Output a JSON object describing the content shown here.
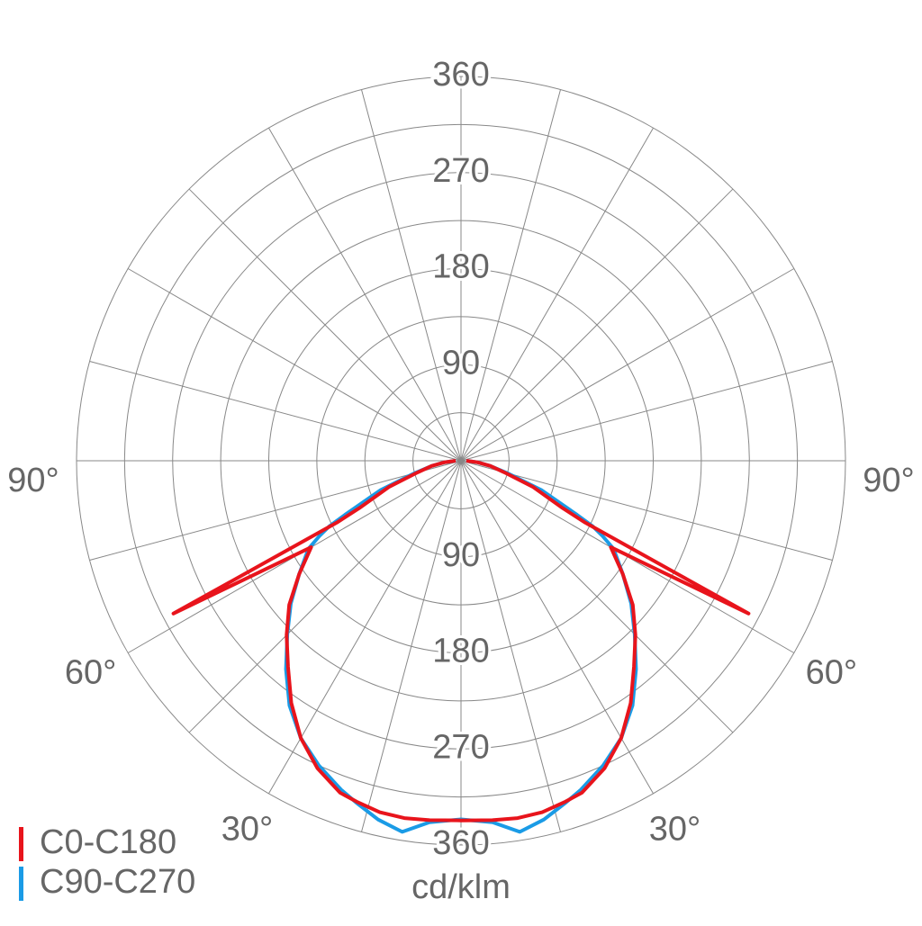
{
  "chart_data": {
    "type": "polar",
    "axis_label": "cd/klm",
    "x": [
      -90,
      -85,
      -80,
      -75,
      -70,
      -65,
      -63.5,
      -62,
      -60,
      -55,
      -50,
      -45,
      -40,
      -35,
      -30,
      -25,
      -20,
      -17,
      -13,
      -9,
      -5,
      0,
      5,
      9,
      13,
      17,
      20,
      25,
      30,
      35,
      40,
      45,
      50,
      55,
      60,
      62,
      63.5,
      65,
      70,
      75,
      80,
      85,
      90
    ],
    "series": [
      {
        "name": "C0-C180",
        "color": "#e8141c",
        "values": [
          5,
          15,
          28,
          42,
          72,
          105,
          130,
          305,
          162,
          185,
          210,
          231,
          252,
          277,
          300,
          318,
          331,
          334,
          338,
          339,
          338,
          337,
          338,
          339,
          338,
          334,
          331,
          318,
          300,
          277,
          252,
          231,
          210,
          185,
          162,
          305,
          130,
          105,
          72,
          42,
          28,
          15,
          5
        ]
      },
      {
        "name": "C90-C270",
        "color": "#1a9be6",
        "values": [
          5,
          15,
          28,
          45,
          80,
          120,
          138,
          150,
          165,
          185,
          208,
          230,
          255,
          280,
          300,
          315,
          328,
          335,
          345,
          352,
          340,
          336,
          340,
          352,
          345,
          335,
          328,
          315,
          300,
          280,
          255,
          230,
          208,
          185,
          165,
          150,
          138,
          120,
          80,
          45,
          28,
          15,
          5
        ]
      }
    ],
    "rlim": [
      0,
      360
    ],
    "rticks": [
      90,
      180,
      270,
      360
    ],
    "rgrid_step": 45,
    "angle_ticks": [
      {
        "value": 90,
        "label": "90°"
      },
      {
        "value": 60,
        "label": "60°"
      },
      {
        "value": 30,
        "label": "30°"
      }
    ],
    "angle_grid_step": 15,
    "legend": "bottom-left"
  }
}
